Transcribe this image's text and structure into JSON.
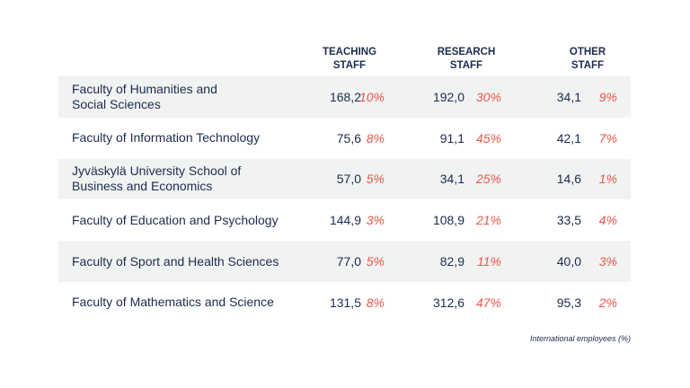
{
  "headers": {
    "teaching": [
      "TEACHING",
      "STAFF"
    ],
    "research": [
      "RESEARCH",
      "STAFF"
    ],
    "other": [
      "OTHER",
      "STAFF"
    ]
  },
  "rows": [
    {
      "name": [
        "Faculty of Humanities and",
        "Social Sciences"
      ],
      "teaching": "168,2",
      "teaching_pct": "10%",
      "research": "192,0",
      "research_pct": "30%",
      "other": "34,1",
      "other_pct": "9%"
    },
    {
      "name": [
        "Faculty of Information Technology",
        ""
      ],
      "teaching": "75,6",
      "teaching_pct": "8%",
      "research": "91,1",
      "research_pct": "45%",
      "other": "42,1",
      "other_pct": "7%"
    },
    {
      "name": [
        "Jyväskylä University School of",
        "Business and Economics"
      ],
      "teaching": "57,0",
      "teaching_pct": "5%",
      "research": "34,1",
      "research_pct": "25%",
      "other": "14,6",
      "other_pct": "1%"
    },
    {
      "name": [
        "Faculty of Education and Psychology",
        ""
      ],
      "teaching": "144,9",
      "teaching_pct": "3%",
      "research": "108,9",
      "research_pct": "21%",
      "other": "33,5",
      "other_pct": "4%"
    },
    {
      "name": [
        "Faculty of Sport and Health Sciences",
        ""
      ],
      "teaching": "77,0",
      "teaching_pct": "5%",
      "research": "82,9",
      "research_pct": "11%",
      "other": "40,0",
      "other_pct": "3%"
    },
    {
      "name": [
        "Faculty of Mathematics and Science",
        ""
      ],
      "teaching": "131,5",
      "teaching_pct": "8%",
      "research": "312,6",
      "research_pct": "47%",
      "other": "95,3",
      "other_pct": "2%"
    }
  ],
  "note": "International employees (%)",
  "colors": {
    "text": "#1c2b4f",
    "accent": "#e8564b",
    "shade": "#f1f3f2"
  }
}
